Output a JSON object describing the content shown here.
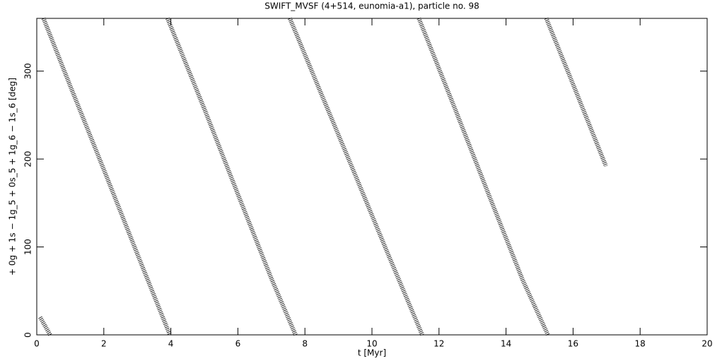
{
  "chart_data": {
    "type": "line",
    "title": "SWIFT_MVSF (4+514, eunomia-a1), particle no. 98",
    "x_label": "t [Myr]",
    "y_label": "+ 0g + 1s − 1g_5 + 0s_5 + 1g_6 − 1s_6 [deg]",
    "x": [
      0.1,
      0.4,
      null,
      0.2,
      1,
      2,
      3,
      3.97,
      null,
      3.9,
      5,
      6,
      7,
      7.72,
      null,
      7.55,
      8.5,
      9.5,
      10.5,
      11.5,
      null,
      11.4,
      12.5,
      13.5,
      14.5,
      15.25,
      null,
      15.2,
      16,
      16.98
    ],
    "values": [
      20,
      0,
      null,
      360,
      283,
      188,
      92,
      0,
      null,
      360,
      257,
      160,
      64,
      0,
      null,
      360,
      273,
      182,
      90,
      0,
      null,
      360,
      255,
      158,
      62,
      0,
      null,
      360,
      285,
      192
    ],
    "color": "#000000",
    "xlim": [
      0,
      20
    ],
    "xticks": [
      0,
      2,
      4,
      6,
      8,
      10,
      12,
      14,
      16,
      18,
      20
    ],
    "ylim": [
      0,
      360
    ],
    "yticks": [
      0,
      100,
      200,
      300
    ]
  }
}
